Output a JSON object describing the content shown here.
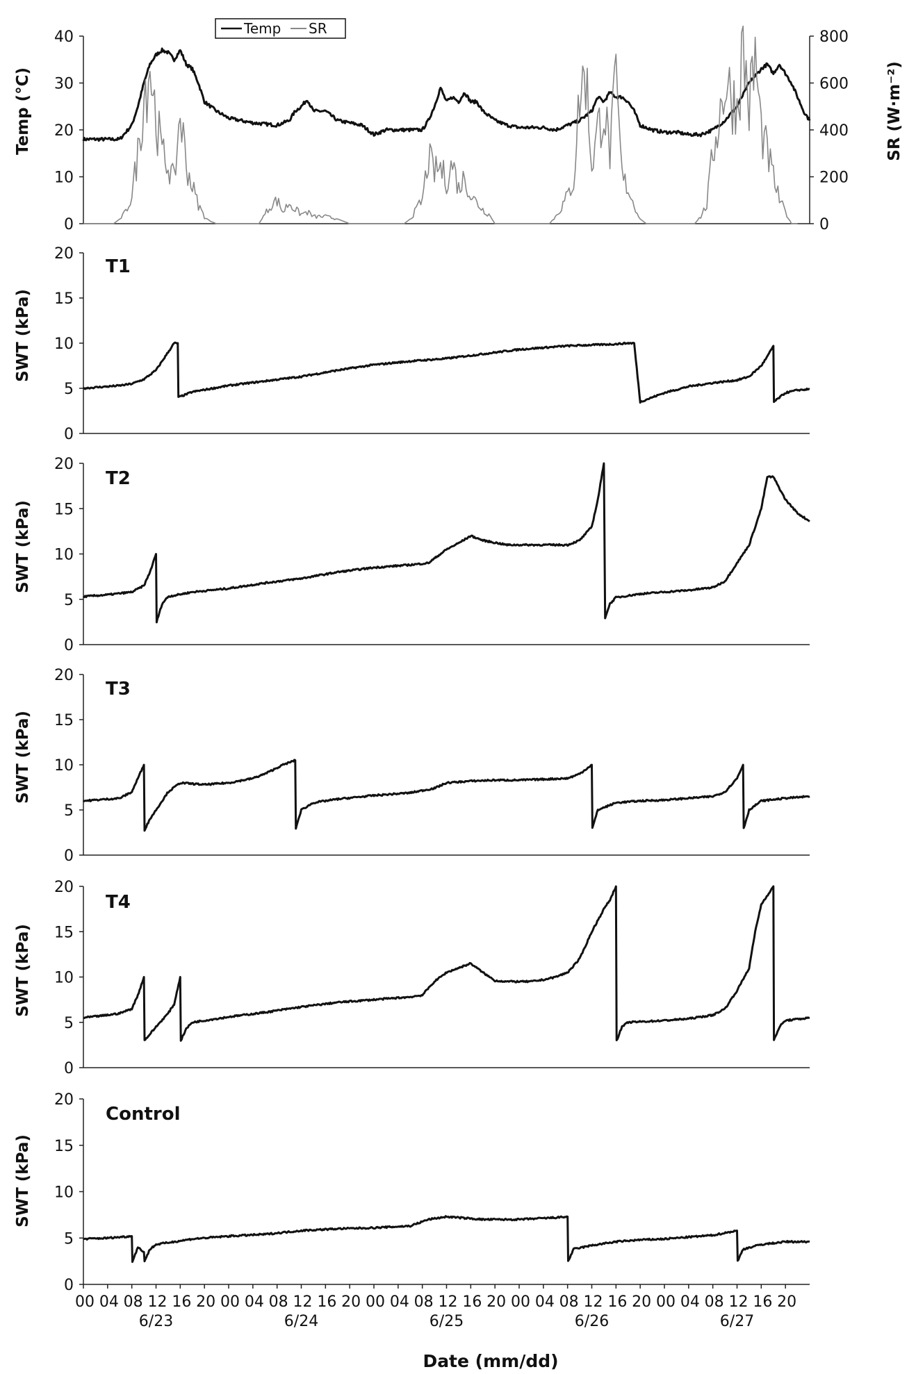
{
  "chart_data": [
    {
      "type": "line",
      "panel": "weather",
      "ylabel": "Temp (°C)",
      "y2label": "SR (W·m⁻²)",
      "ylim": [
        0,
        40
      ],
      "y2lim": [
        0,
        800
      ],
      "yticks": [
        "0",
        "10",
        "20",
        "30",
        "40"
      ],
      "y2ticks": [
        "0",
        "200",
        "400",
        "600",
        "800"
      ],
      "legend": [
        "Temp",
        "SR"
      ],
      "legend_position": "top-left",
      "series": [
        {
          "name": "Temp",
          "axis": "left",
          "color": "#111111",
          "x": [
            0,
            6,
            8,
            9,
            10,
            11,
            12,
            13,
            14,
            15,
            16,
            17,
            18,
            19,
            20,
            22,
            24,
            26,
            28,
            32,
            34,
            35,
            36,
            37,
            38,
            40,
            42,
            44,
            46,
            48,
            50,
            54,
            56,
            57,
            58,
            59,
            60,
            61,
            62,
            63,
            64,
            65,
            66,
            68,
            70,
            72,
            74,
            76,
            78,
            80,
            82,
            84,
            85,
            86,
            87,
            88,
            89,
            90,
            91,
            92,
            94,
            96,
            98,
            100,
            102,
            104,
            106,
            108,
            110,
            112,
            113,
            114,
            115,
            116,
            117,
            118,
            119,
            120
          ],
          "values": [
            18,
            18,
            21,
            25,
            30,
            34,
            36,
            37,
            36.5,
            35,
            37,
            34,
            33,
            30,
            26,
            24,
            22.5,
            22,
            21.5,
            21,
            22,
            24,
            25,
            26.5,
            24,
            24,
            22,
            21.5,
            21,
            19,
            20,
            20,
            20,
            22,
            25,
            29,
            26,
            27,
            26,
            28,
            26,
            26,
            24,
            22,
            21,
            20.5,
            20.5,
            20.5,
            20,
            21,
            22,
            24,
            27,
            26,
            28,
            27,
            27,
            26,
            24,
            21,
            20,
            19.5,
            19.5,
            19,
            19,
            20,
            22,
            25,
            30,
            33,
            34,
            32,
            34,
            32,
            30,
            27,
            24,
            22
          ]
        },
        {
          "name": "SR",
          "axis": "right",
          "color": "#888888",
          "x": [
            0,
            5,
            6,
            7,
            8,
            9,
            10,
            11,
            12,
            13,
            14,
            15,
            16,
            17,
            18,
            19,
            20,
            21,
            22,
            24,
            29,
            30,
            31,
            32,
            33,
            34,
            35,
            36,
            37,
            38,
            40,
            42,
            44,
            47,
            53,
            54,
            55,
            56,
            57,
            58,
            59,
            60,
            61,
            62,
            63,
            64,
            65,
            66,
            67,
            68,
            71,
            77,
            78,
            79,
            80,
            81,
            82,
            83,
            84,
            85,
            86,
            87,
            88,
            89,
            90,
            91,
            92,
            93,
            94,
            95,
            96,
            97,
            101,
            102,
            103,
            104,
            105,
            106,
            107,
            108,
            109,
            110,
            111,
            112,
            113,
            114,
            115,
            116,
            117,
            118
          ],
          "values": [
            0,
            0,
            20,
            50,
            120,
            300,
            550,
            680,
            450,
            300,
            250,
            180,
            480,
            250,
            160,
            80,
            30,
            10,
            0,
            0,
            0,
            40,
            80,
            100,
            50,
            90,
            60,
            40,
            50,
            30,
            30,
            20,
            0,
            0,
            0,
            20,
            60,
            100,
            280,
            220,
            240,
            180,
            260,
            150,
            200,
            120,
            90,
            60,
            40,
            0,
            0,
            0,
            30,
            70,
            120,
            180,
            550,
            650,
            250,
            400,
            500,
            300,
            600,
            200,
            150,
            80,
            20,
            0,
            0,
            0,
            0,
            0,
            0,
            30,
            80,
            300,
            450,
            600,
            550,
            500,
            750,
            500,
            700,
            400,
            300,
            200,
            100,
            50,
            0,
            0
          ]
        }
      ],
      "x_range": [
        0,
        120
      ]
    },
    {
      "type": "line",
      "panel": "T1",
      "ylabel": "SWT (kPa)",
      "ylim": [
        0,
        20
      ],
      "yticks": [
        "0",
        "5",
        "10",
        "15",
        "20"
      ],
      "series": [
        {
          "name": "T1",
          "color": "#111111",
          "x": [
            0,
            6,
            8,
            10,
            12,
            14,
            15,
            15.6,
            15.7,
            18,
            24,
            30,
            36,
            42,
            48,
            54,
            60,
            66,
            72,
            78,
            80,
            84,
            88,
            90,
            91,
            92,
            96,
            100,
            104,
            108,
            110,
            112,
            113,
            114,
            114.1,
            116,
            118,
            120
          ],
          "values": [
            5,
            5.3,
            5.5,
            6,
            7,
            9,
            10,
            10,
            4,
            4.6,
            5.3,
            5.8,
            6.3,
            7,
            7.6,
            8,
            8.3,
            8.8,
            9.3,
            9.6,
            9.7,
            9.8,
            9.9,
            10,
            10,
            3.5,
            4.5,
            5.2,
            5.6,
            5.9,
            6.3,
            7.5,
            8.5,
            9.7,
            3.5,
            4.5,
            4.8,
            4.9
          ]
        }
      ],
      "x_range": [
        0,
        120
      ]
    },
    {
      "type": "line",
      "panel": "T2",
      "ylabel": "SWT (kPa)",
      "ylim": [
        0,
        20
      ],
      "yticks": [
        "0",
        "5",
        "10",
        "15",
        "20"
      ],
      "series": [
        {
          "name": "T2",
          "color": "#111111",
          "x": [
            0,
            4,
            8,
            10,
            11,
            12,
            12.1,
            13,
            14,
            18,
            24,
            30,
            36,
            42,
            48,
            54,
            57,
            60,
            62,
            64,
            66,
            70,
            74,
            78,
            80,
            82,
            84,
            85,
            86,
            86.2,
            87,
            88,
            92,
            96,
            100,
            104,
            106,
            108,
            110,
            112,
            113,
            114,
            116,
            118,
            120
          ],
          "values": [
            5.3,
            5.5,
            5.8,
            6.5,
            8,
            10,
            2.5,
            4.5,
            5.3,
            5.8,
            6.2,
            6.8,
            7.3,
            8,
            8.5,
            8.8,
            9,
            10.5,
            11.2,
            12,
            11.5,
            11,
            11,
            11,
            11,
            11.5,
            13,
            16,
            20,
            3,
            4.5,
            5.2,
            5.6,
            5.8,
            6,
            6.3,
            7,
            9,
            11,
            15,
            18.5,
            18.5,
            16,
            14.5,
            13.6
          ]
        }
      ],
      "x_range": [
        0,
        120
      ]
    },
    {
      "type": "line",
      "panel": "T3",
      "ylabel": "SWT (kPa)",
      "ylim": [
        0,
        20
      ],
      "yticks": [
        "0",
        "5",
        "10",
        "15",
        "20"
      ],
      "series": [
        {
          "name": "T3",
          "color": "#111111",
          "x": [
            0,
            6,
            8,
            9,
            10,
            10.1,
            11,
            12,
            14,
            16,
            20,
            24,
            28,
            30,
            33,
            35,
            35.1,
            36,
            38,
            42,
            48,
            54,
            58,
            60,
            64,
            68,
            72,
            76,
            80,
            82,
            84,
            84.1,
            85,
            88,
            92,
            96,
            100,
            104,
            106,
            108,
            109,
            109.1,
            110,
            112,
            116,
            120
          ],
          "values": [
            6,
            6.3,
            7,
            8.5,
            10,
            2.8,
            4,
            5,
            7,
            8,
            7.8,
            8,
            8.5,
            9,
            10,
            10.5,
            3,
            5,
            5.8,
            6.2,
            6.6,
            6.9,
            7.4,
            8,
            8.2,
            8.3,
            8.3,
            8.4,
            8.5,
            9,
            10,
            3,
            5,
            5.8,
            6,
            6.1,
            6.3,
            6.5,
            7,
            8.5,
            10,
            3,
            5,
            6,
            6.3,
            6.5
          ]
        }
      ],
      "x_range": [
        0,
        120
      ]
    },
    {
      "type": "line",
      "panel": "T4",
      "ylabel": "SWT (kPa)",
      "ylim": [
        0,
        20
      ],
      "yticks": [
        "0",
        "5",
        "10",
        "15",
        "20"
      ],
      "series": [
        {
          "name": "T4",
          "color": "#111111",
          "x": [
            0,
            4,
            6,
            8,
            9,
            10,
            10.1,
            12,
            14,
            15,
            16,
            16.1,
            17,
            18,
            24,
            30,
            36,
            42,
            48,
            54,
            56,
            58,
            60,
            62,
            64,
            66,
            68,
            70,
            72,
            74,
            76,
            78,
            80,
            82,
            84,
            86,
            87,
            88,
            88.1,
            89,
            90,
            96,
            100,
            104,
            106,
            108,
            110,
            111,
            112,
            114,
            114.1,
            115,
            116,
            120
          ],
          "values": [
            5.5,
            5.8,
            6,
            6.5,
            8,
            10,
            3,
            4.5,
            6,
            7,
            10,
            3,
            4.3,
            5,
            5.6,
            6.1,
            6.7,
            7.2,
            7.5,
            7.8,
            8,
            9.5,
            10.5,
            11,
            11.5,
            10.5,
            9.6,
            9.5,
            9.5,
            9.5,
            9.7,
            10,
            10.5,
            12,
            15,
            17.5,
            18.5,
            20,
            3,
            4.5,
            5,
            5.2,
            5.4,
            5.8,
            6.5,
            8.5,
            11,
            15,
            18,
            20,
            3,
            4.5,
            5.2,
            5.5
          ]
        }
      ],
      "x_range": [
        0,
        120
      ]
    },
    {
      "type": "line",
      "panel": "Control",
      "ylabel": "SWT (kPa)",
      "ylim": [
        0,
        20
      ],
      "yticks": [
        "0",
        "5",
        "10",
        "15",
        "20"
      ],
      "xlabel": "Date (mm/dd)",
      "series": [
        {
          "name": "Control",
          "color": "#111111",
          "x": [
            0,
            4,
            8,
            8.1,
            9,
            10,
            10.1,
            11,
            12,
            18,
            24,
            30,
            36,
            42,
            48,
            54,
            57,
            60,
            66,
            72,
            78,
            80,
            80.1,
            81,
            84,
            88,
            92,
            96,
            104,
            108,
            108.1,
            109,
            112,
            116,
            120
          ],
          "values": [
            4.9,
            5,
            5.2,
            2.5,
            4,
            3.5,
            2.5,
            3.8,
            4.3,
            4.9,
            5.2,
            5.4,
            5.8,
            6,
            6.1,
            6.3,
            7,
            7.3,
            7,
            7,
            7.2,
            7.3,
            2.5,
            3.8,
            4.2,
            4.6,
            4.8,
            4.9,
            5.3,
            5.8,
            2.5,
            3.8,
            4.3,
            4.6,
            4.6
          ]
        }
      ],
      "x_range": [
        0,
        120
      ]
    }
  ],
  "x_axis": {
    "ticks": [
      "00",
      "04",
      "08",
      "12",
      "16",
      "20",
      "00",
      "04",
      "08",
      "12",
      "16",
      "20",
      "00",
      "04",
      "08",
      "12",
      "16",
      "20",
      "00",
      "04",
      "08",
      "12",
      "16",
      "20",
      "00",
      "04",
      "08",
      "12",
      "16",
      "20"
    ],
    "dates": [
      "6/23",
      "6/24",
      "6/25",
      "6/26",
      "6/27"
    ],
    "title": "Date (mm/dd)"
  },
  "panel_labels": [
    "T1",
    "T2",
    "T3",
    "T4",
    "Control"
  ]
}
